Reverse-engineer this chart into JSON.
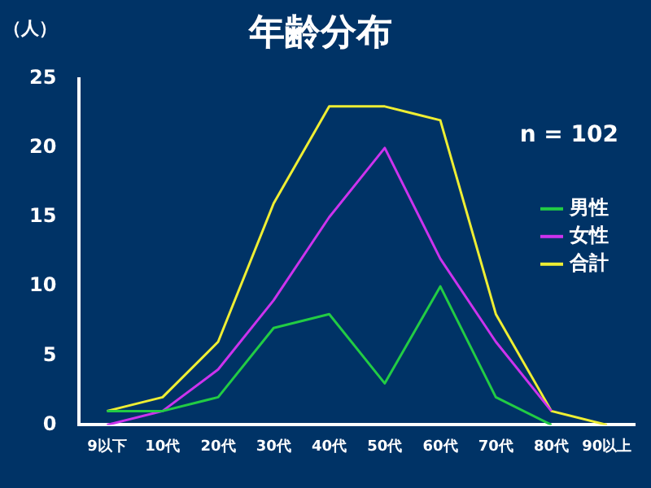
{
  "chart_data": {
    "type": "line",
    "title": "年齢分布",
    "ylabel": "（人）",
    "categories": [
      "9以下",
      "10代",
      "20代",
      "30代",
      "40代",
      "50代",
      "60代",
      "70代",
      "80代",
      "90以上"
    ],
    "series": [
      {
        "name": "男性",
        "color": "#22cc44",
        "values": [
          1,
          1,
          2,
          7,
          8,
          3,
          10,
          2,
          0,
          null
        ]
      },
      {
        "name": "女性",
        "color": "#cc33ee",
        "values": [
          0,
          1,
          4,
          9,
          15,
          20,
          12,
          6,
          1,
          null
        ]
      },
      {
        "name": "合計",
        "color": "#eeee33",
        "values": [
          1,
          2,
          6,
          16,
          23,
          23,
          22,
          8,
          1,
          0
        ]
      }
    ],
    "ylim": [
      0,
      25
    ],
    "yticks": [
      0,
      5,
      10,
      15,
      20,
      25
    ],
    "grid": false,
    "legend": "right",
    "marker": "none",
    "line_style": "solid",
    "annotations": [
      "n = 102"
    ]
  }
}
